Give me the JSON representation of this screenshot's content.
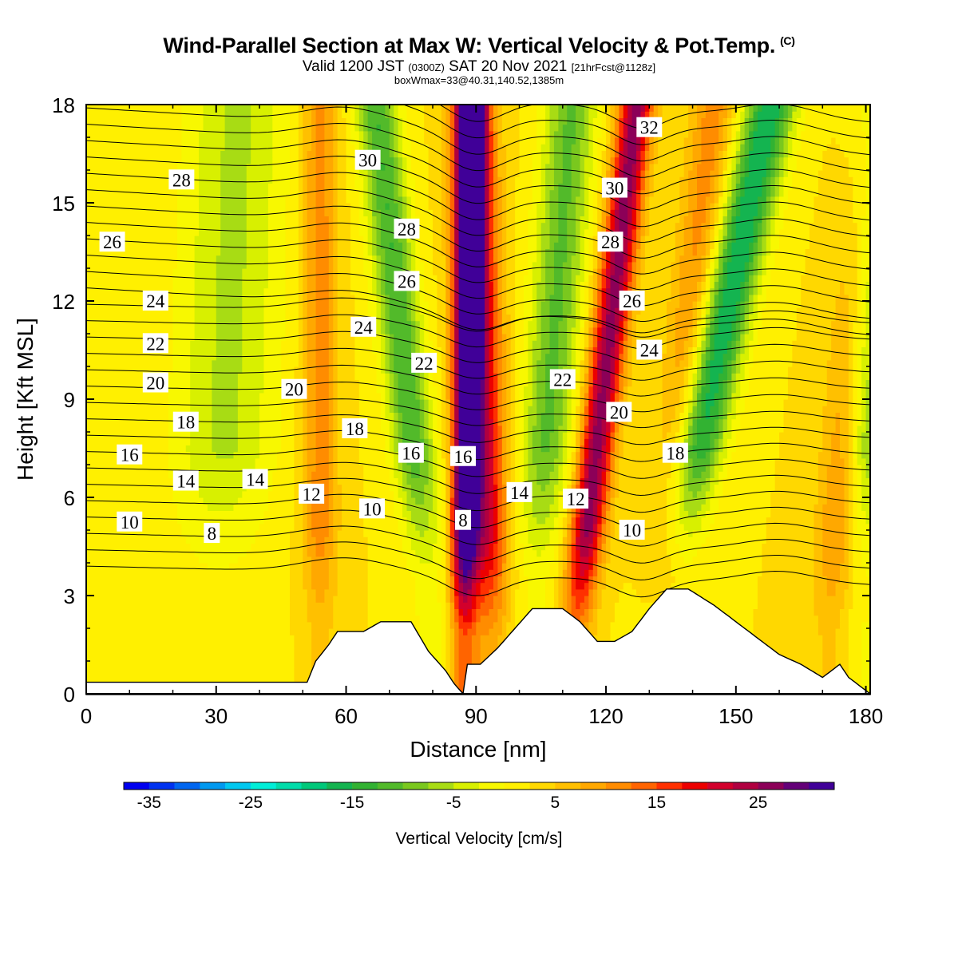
{
  "title": "Wind-Parallel Section at Max W: Vertical Velocity & Pot.Temp.",
  "title_mark": "(C)",
  "subtitle": {
    "valid": "Valid 1200 JST",
    "utc": "(0300Z)",
    "date": "SAT 20 Nov 2021",
    "fcst": "[21hrFcst@1128z]"
  },
  "box_info": "boxWmax=33@40.31,140.52,1385m",
  "chart_data": {
    "type": "heatmap",
    "xlabel": "Distance [nm]",
    "ylabel": "Height [Kft MSL]",
    "xlim": [
      0,
      181
    ],
    "ylim": [
      0,
      18
    ],
    "xticks": [
      0,
      30,
      60,
      90,
      120,
      150,
      180
    ],
    "yticks": [
      0,
      3,
      6,
      9,
      12,
      15,
      18
    ],
    "field": "Vertical Velocity [cm/s]",
    "colorbar": {
      "label": "Vertical Velocity [cm/s]",
      "tick_labels": [
        "-35",
        "-25",
        "-15",
        "-5",
        "5",
        "15",
        "25"
      ],
      "range": [
        -37.5,
        32.5
      ],
      "bin": 2.5,
      "colors": [
        "#0000f0",
        "#0033f0",
        "#0066f0",
        "#0099f0",
        "#00c8f0",
        "#00eed8",
        "#00dcaa",
        "#00c87a",
        "#14b450",
        "#32b232",
        "#52ba2a",
        "#7ac81e",
        "#a8dc14",
        "#d8f000",
        "#f8f800",
        "#fff000",
        "#ffd800",
        "#ffc000",
        "#ffa800",
        "#ff8c00",
        "#ff6400",
        "#ff3000",
        "#ec0000",
        "#d2002c",
        "#b00040",
        "#8c0058",
        "#640078",
        "#400098"
      ]
    },
    "updraft_bands": [
      {
        "x_base": 54,
        "x_top": 54,
        "peak_w": 9,
        "half_width_nm": 4
      },
      {
        "x_base": 87,
        "x_top": 89,
        "peak_w": 31,
        "half_width_nm": 3
      },
      {
        "x_base": 93,
        "x_top": 89,
        "peak_w": 20,
        "half_width_nm": 5
      },
      {
        "x_base": 113,
        "x_top": 127,
        "peak_w": 24,
        "half_width_nm": 4
      },
      {
        "x_base": 132,
        "x_top": 145,
        "peak_w": 9,
        "half_width_nm": 5
      },
      {
        "x_base": 172,
        "x_top": 181,
        "peak_w": 9,
        "half_width_nm": 5
      }
    ],
    "downdraft_bands": [
      {
        "x_base": 80,
        "x_top": 67,
        "peak_w": -15,
        "half_width_nm": 5
      },
      {
        "x_base": 103,
        "x_top": 112,
        "peak_w": -13,
        "half_width_nm": 6
      },
      {
        "x_base": 132,
        "x_top": 158,
        "peak_w": -20,
        "half_width_nm": 6
      },
      {
        "x_base": 30,
        "x_top": 35,
        "peak_w": -8,
        "half_width_nm": 12
      },
      {
        "x_base": 179,
        "x_top": 181,
        "peak_w": -12,
        "half_width_nm": 5
      }
    ],
    "terrain_kft": {
      "x": [
        0,
        51,
        53,
        56,
        58,
        61,
        64,
        68,
        71,
        75,
        79,
        83,
        85,
        87,
        88,
        91,
        95,
        99,
        103,
        107,
        110,
        114,
        118,
        122,
        126,
        130,
        134,
        139,
        145,
        150,
        155,
        160,
        165,
        170,
        174,
        176,
        179,
        181
      ],
      "height": [
        0.35,
        0.35,
        1.0,
        1.5,
        1.9,
        1.9,
        1.9,
        2.2,
        2.2,
        2.2,
        1.3,
        0.7,
        0.3,
        0.0,
        0.9,
        0.9,
        1.4,
        2.0,
        2.6,
        2.6,
        2.6,
        2.2,
        1.6,
        1.6,
        1.9,
        2.6,
        3.2,
        3.2,
        2.7,
        2.2,
        1.7,
        1.2,
        0.9,
        0.5,
        0.9,
        0.5,
        0.2,
        0.0
      ]
    },
    "potential_temperature": {
      "interval_c": 1,
      "labels": [
        {
          "value": "8",
          "x": 29,
          "y": 4.9
        },
        {
          "value": "8",
          "x": 87,
          "y": 5.3
        },
        {
          "value": "10",
          "x": 10,
          "y": 5.25
        },
        {
          "value": "10",
          "x": 66,
          "y": 5.65
        },
        {
          "value": "10",
          "x": 126,
          "y": 5.0
        },
        {
          "value": "12",
          "x": 52,
          "y": 6.1
        },
        {
          "value": "12",
          "x": 113,
          "y": 5.95
        },
        {
          "value": "14",
          "x": 23,
          "y": 6.5
        },
        {
          "value": "14",
          "x": 39,
          "y": 6.55
        },
        {
          "value": "14",
          "x": 100,
          "y": 6.15
        },
        {
          "value": "16",
          "x": 10,
          "y": 7.3
        },
        {
          "value": "16",
          "x": 75,
          "y": 7.35
        },
        {
          "value": "16",
          "x": 87,
          "y": 7.25
        },
        {
          "value": "18",
          "x": 23,
          "y": 8.3
        },
        {
          "value": "18",
          "x": 62,
          "y": 8.1
        },
        {
          "value": "18",
          "x": 136,
          "y": 7.35
        },
        {
          "value": "20",
          "x": 16,
          "y": 9.5
        },
        {
          "value": "20",
          "x": 48,
          "y": 9.3
        },
        {
          "value": "20",
          "x": 123,
          "y": 8.6
        },
        {
          "value": "22",
          "x": 16,
          "y": 10.7
        },
        {
          "value": "22",
          "x": 78,
          "y": 10.1
        },
        {
          "value": "22",
          "x": 110,
          "y": 9.6
        },
        {
          "value": "24",
          "x": 16,
          "y": 12.0
        },
        {
          "value": "24",
          "x": 64,
          "y": 11.2
        },
        {
          "value": "24",
          "x": 130,
          "y": 10.5
        },
        {
          "value": "26",
          "x": 6,
          "y": 13.8
        },
        {
          "value": "26",
          "x": 74,
          "y": 12.6
        },
        {
          "value": "26",
          "x": 126,
          "y": 12.0
        },
        {
          "value": "28",
          "x": 22,
          "y": 15.7
        },
        {
          "value": "28",
          "x": 74,
          "y": 14.2
        },
        {
          "value": "28",
          "x": 121,
          "y": 13.8
        },
        {
          "value": "30",
          "x": 65,
          "y": 16.3
        },
        {
          "value": "30",
          "x": 122,
          "y": 15.45
        },
        {
          "value": "32",
          "x": 130,
          "y": 17.3
        }
      ]
    }
  }
}
